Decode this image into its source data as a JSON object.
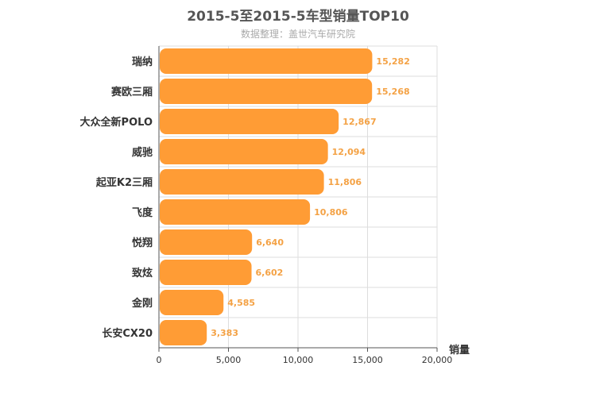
{
  "title": "2015-5至2015-5车型销量TOP10",
  "subtitle": "数据整理：盖世汽车研究院",
  "colors": {
    "bar": "#ff9c35",
    "value_label": "#f4a245",
    "grid": "#dddddd",
    "axis": "#555555"
  },
  "chart_data": {
    "type": "bar",
    "orientation": "horizontal",
    "title": "2015-5至2015-5车型销量TOP10",
    "subtitle": "数据整理：盖世汽车研究院",
    "xlabel": "销量",
    "ylabel": "",
    "categories": [
      "瑞纳",
      "赛欧三厢",
      "大众全新POLO",
      "威驰",
      "起亚K2三厢",
      "飞度",
      "悦翔",
      "致炫",
      "金刚",
      "长安CX20"
    ],
    "values": [
      15282,
      15268,
      12867,
      12094,
      11806,
      10806,
      6640,
      6602,
      4585,
      3383
    ],
    "value_labels": [
      "15,282",
      "15,268",
      "12,867",
      "12,094",
      "11,806",
      "10,806",
      "6,640",
      "6,602",
      "4,585",
      "3,383"
    ],
    "xlim": [
      0,
      20000
    ],
    "xticks": [
      0,
      5000,
      10000,
      15000,
      20000
    ],
    "xtick_labels": [
      "0",
      "5,000",
      "10,000",
      "15,000",
      "20,000"
    ],
    "grid": true,
    "legend": "none"
  }
}
